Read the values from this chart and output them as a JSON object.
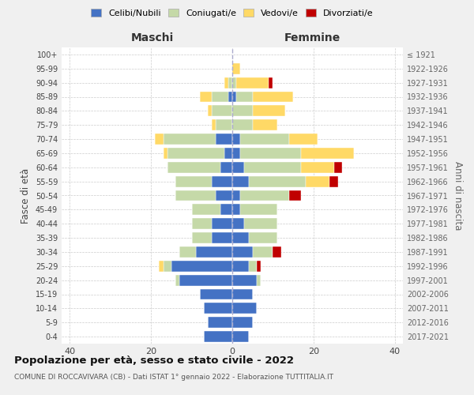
{
  "age_groups": [
    "0-4",
    "5-9",
    "10-14",
    "15-19",
    "20-24",
    "25-29",
    "30-34",
    "35-39",
    "40-44",
    "45-49",
    "50-54",
    "55-59",
    "60-64",
    "65-69",
    "70-74",
    "75-79",
    "80-84",
    "85-89",
    "90-94",
    "95-99",
    "100+"
  ],
  "birth_years": [
    "2017-2021",
    "2012-2016",
    "2007-2011",
    "2002-2006",
    "1997-2001",
    "1992-1996",
    "1987-1991",
    "1982-1986",
    "1977-1981",
    "1972-1976",
    "1967-1971",
    "1962-1966",
    "1957-1961",
    "1952-1956",
    "1947-1951",
    "1942-1946",
    "1937-1941",
    "1932-1936",
    "1927-1931",
    "1922-1926",
    "≤ 1921"
  ],
  "maschi": {
    "celibi": [
      7,
      6,
      7,
      8,
      13,
      15,
      9,
      5,
      5,
      3,
      4,
      5,
      3,
      2,
      4,
      0,
      0,
      1,
      0,
      0,
      0
    ],
    "coniugati": [
      0,
      0,
      0,
      0,
      1,
      2,
      4,
      5,
      5,
      7,
      10,
      9,
      13,
      14,
      13,
      4,
      5,
      4,
      1,
      0,
      0
    ],
    "vedovi": [
      0,
      0,
      0,
      0,
      0,
      1,
      0,
      0,
      0,
      0,
      0,
      0,
      0,
      1,
      2,
      1,
      1,
      3,
      1,
      0,
      0
    ],
    "divorziati": [
      0,
      0,
      0,
      0,
      0,
      0,
      0,
      0,
      0,
      0,
      0,
      0,
      0,
      0,
      0,
      0,
      0,
      0,
      0,
      0,
      0
    ]
  },
  "femmine": {
    "nubili": [
      4,
      5,
      6,
      5,
      6,
      4,
      5,
      4,
      3,
      2,
      2,
      4,
      3,
      2,
      2,
      0,
      0,
      1,
      0,
      0,
      0
    ],
    "coniugate": [
      0,
      0,
      0,
      0,
      1,
      2,
      5,
      7,
      8,
      9,
      12,
      14,
      14,
      15,
      12,
      5,
      5,
      4,
      1,
      0,
      0
    ],
    "vedove": [
      0,
      0,
      0,
      0,
      0,
      0,
      0,
      0,
      0,
      0,
      0,
      6,
      8,
      13,
      7,
      6,
      8,
      10,
      8,
      2,
      0
    ],
    "divorziate": [
      0,
      0,
      0,
      0,
      0,
      1,
      2,
      0,
      0,
      0,
      3,
      2,
      2,
      0,
      0,
      0,
      0,
      0,
      1,
      0,
      0
    ]
  },
  "colors": {
    "celibi_nubili": "#4472C4",
    "coniugati_e": "#C5D9A8",
    "vedovi_e": "#FFD966",
    "divorziati_e": "#C00000"
  },
  "title": "Popolazione per età, sesso e stato civile - 2022",
  "subtitle": "COMUNE DI ROCCAVIVARA (CB) - Dati ISTAT 1° gennaio 2022 - Elaborazione TUTTITALIA.IT",
  "xlabel_left": "Maschi",
  "xlabel_right": "Femmine",
  "ylabel": "Fasce di età",
  "ylabel_right": "Anni di nascita",
  "xlim": 42,
  "bg_color": "#f0f0f0",
  "plot_bg": "#ffffff",
  "grid_color": "#cccccc"
}
